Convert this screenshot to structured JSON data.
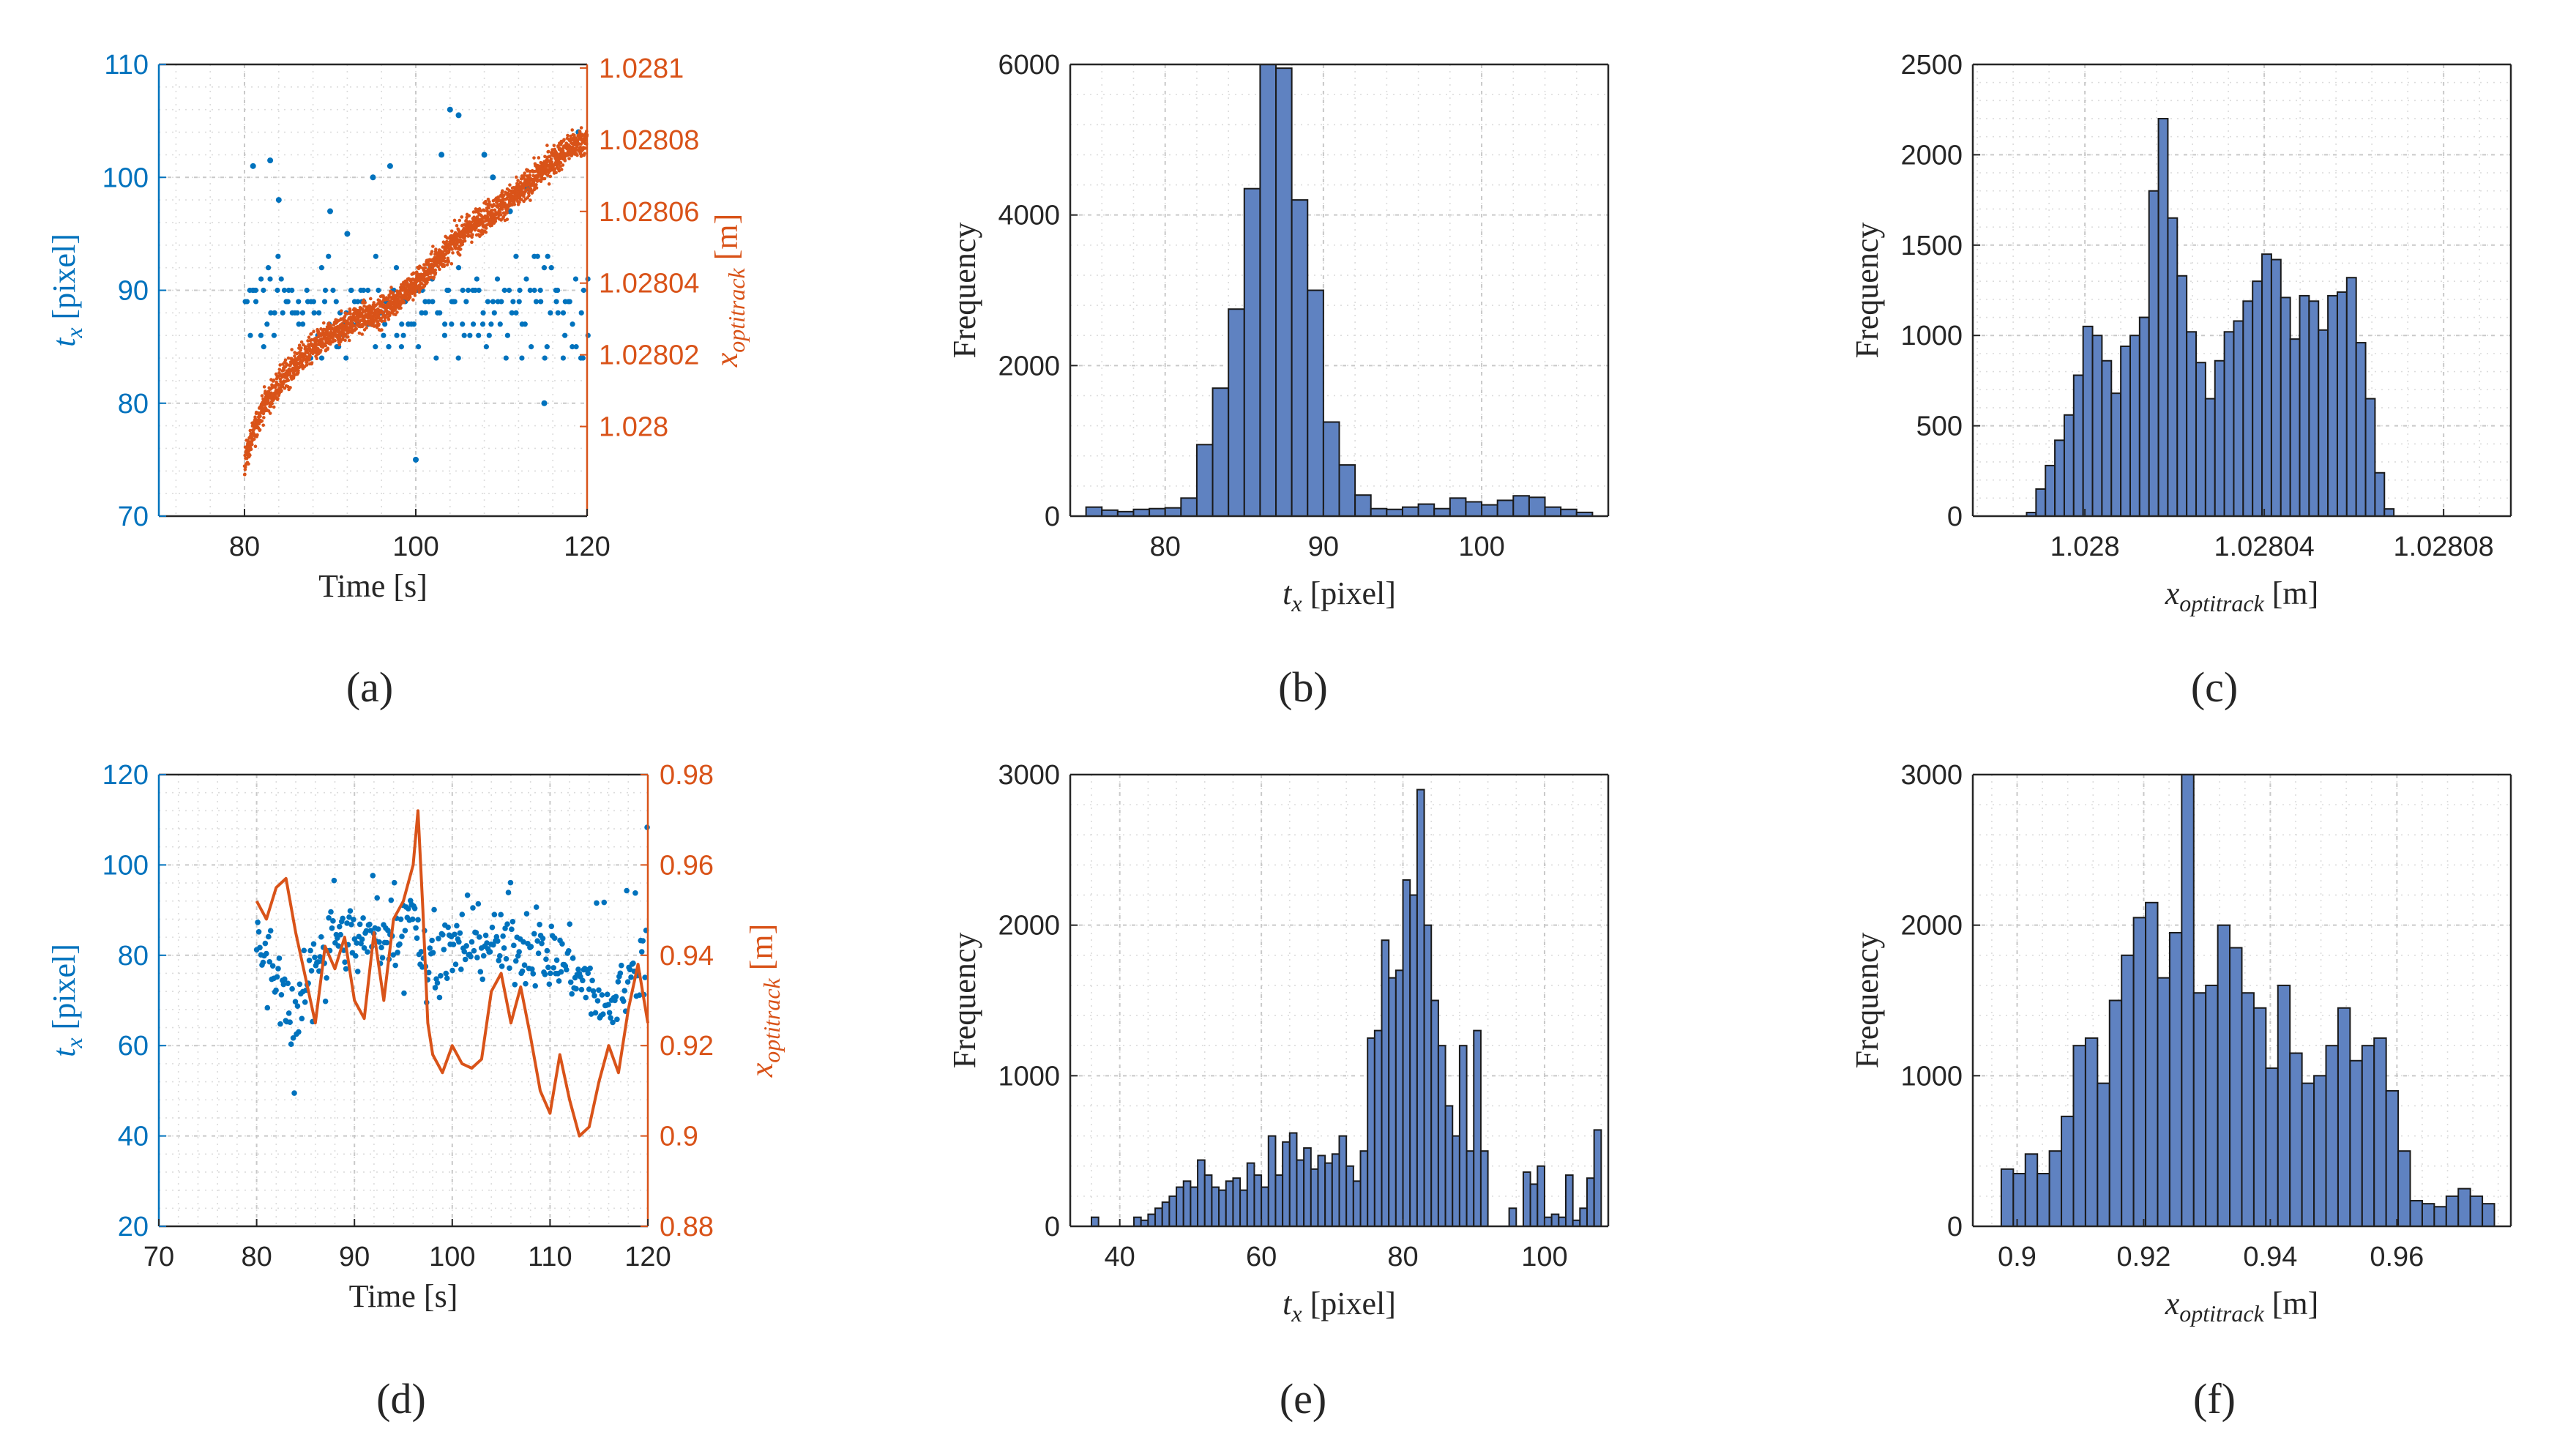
{
  "colors": {
    "blue": "#0072BD",
    "orange": "#D95319",
    "bar_fill": "#5F82C1",
    "bar_edge": "#1a1a1a",
    "axis": "#262626"
  },
  "chart_data": [
    {
      "id": "a",
      "type": "scatter",
      "panel_label": "(a)",
      "xlabel": "Time [s]",
      "ylabel_left": "t_x [pixel]",
      "ylabel_right": "x_optitrack [m]",
      "xlim": [
        70,
        120
      ],
      "xticks": [
        80,
        100,
        120
      ],
      "xtick_labels": [
        "80",
        "100",
        "120"
      ],
      "ylim_left": [
        70,
        110
      ],
      "yticks_left": [
        70,
        80,
        90,
        100,
        110
      ],
      "ytick_labels_left": [
        "70",
        "80",
        "90",
        "100",
        "110"
      ],
      "ylim_right": [
        1.027975,
        1.028101
      ],
      "yticks_right": [
        1.028,
        1.02802,
        1.02804,
        1.02806,
        1.02808,
        1.0281
      ],
      "ytick_labels_right": [
        "1.028",
        "1.02802",
        "1.02804",
        "1.02806",
        "1.02808",
        "1.0281"
      ],
      "series": [
        {
          "name": "t_x",
          "axis": "left",
          "style": "dots",
          "time_range": [
            80,
            120
          ],
          "baseline_levels": [
            84,
            85,
            86,
            87,
            88,
            89,
            90,
            91,
            92,
            93
          ],
          "level_weights": [
            4,
            5,
            7,
            9,
            10,
            10,
            9,
            6,
            4,
            3
          ],
          "outliers": [
            [
              81,
              101
            ],
            [
              83,
              101.5
            ],
            [
              84,
              98
            ],
            [
              90,
              97
            ],
            [
              92,
              95
            ],
            [
              95,
              100
            ],
            [
              97,
              101
            ],
            [
              100,
              75
            ],
            [
              103,
              102
            ],
            [
              104,
              106
            ],
            [
              105,
              105.5
            ],
            [
              108,
              102
            ],
            [
              109,
              100
            ],
            [
              111,
              97
            ],
            [
              113,
              99
            ],
            [
              115,
              80
            ],
            [
              119,
              104
            ]
          ]
        },
        {
          "name": "x_optitrack",
          "axis": "right",
          "style": "noisy-line",
          "points": [
            [
              80,
              1.02799
            ],
            [
              82,
              1.028005
            ],
            [
              85,
              1.028015
            ],
            [
              88,
              1.028022
            ],
            [
              90,
              1.028025
            ],
            [
              93,
              1.02803
            ],
            [
              96,
              1.028032
            ],
            [
              99,
              1.028038
            ],
            [
              101,
              1.028042
            ],
            [
              103,
              1.028048
            ],
            [
              106,
              1.028055
            ],
            [
              109,
              1.02806
            ],
            [
              112,
              1.028065
            ],
            [
              115,
              1.028072
            ],
            [
              118,
              1.028078
            ],
            [
              120,
              1.02808
            ]
          ],
          "noise": 2.8e-06
        }
      ]
    },
    {
      "id": "b",
      "type": "bar",
      "panel_label": "(b)",
      "xlabel": "t_x [pixel]",
      "ylabel": "Frequency",
      "xlim": [
        74,
        108
      ],
      "xticks": [
        80,
        90,
        100
      ],
      "xtick_labels": [
        "80",
        "90",
        "100"
      ],
      "ylim": [
        0,
        6000
      ],
      "yticks": [
        0,
        2000,
        4000,
        6000
      ],
      "ytick_labels": [
        "0",
        "2000",
        "4000",
        "6000"
      ],
      "bin_start": 75,
      "bin_width": 1,
      "values": [
        120,
        80,
        60,
        90,
        100,
        110,
        240,
        950,
        1700,
        2750,
        4350,
        6000,
        5950,
        4200,
        3000,
        1250,
        680,
        280,
        100,
        90,
        120,
        160,
        100,
        240,
        190,
        150,
        210,
        270,
        250,
        120,
        90,
        50
      ]
    },
    {
      "id": "c",
      "type": "bar",
      "panel_label": "(c)",
      "xlabel": "x_optitrack [m]",
      "ylabel": "Frequency",
      "xlim": [
        1.027975,
        1.028095
      ],
      "xticks": [
        1.028,
        1.02804,
        1.02808
      ],
      "xtick_labels": [
        "1.028",
        "1.02804",
        "1.02808"
      ],
      "ylim": [
        0,
        2500
      ],
      "yticks": [
        0,
        500,
        1000,
        1500,
        2000,
        2500
      ],
      "ytick_labels": [
        "0",
        "500",
        "1000",
        "1500",
        "2000",
        "2500"
      ],
      "bin_start": 1.027987,
      "bin_width": 2.1e-06,
      "values": [
        20,
        150,
        280,
        420,
        560,
        780,
        1050,
        1000,
        860,
        680,
        940,
        1000,
        1100,
        1800,
        2200,
        1650,
        1330,
        1020,
        850,
        650,
        860,
        1020,
        1080,
        1190,
        1300,
        1450,
        1420,
        1210,
        980,
        1220,
        1190,
        1030,
        1220,
        1240,
        1320,
        960,
        650,
        240,
        40
      ]
    },
    {
      "id": "d",
      "type": "scatter",
      "panel_label": "(d)",
      "xlabel": "Time [s]",
      "ylabel_left": "t_x [pixel]",
      "ylabel_right": "x_optitrack [m]",
      "xlim": [
        70,
        120
      ],
      "xticks": [
        70,
        80,
        90,
        100,
        110,
        120
      ],
      "xtick_labels": [
        "70",
        "80",
        "90",
        "100",
        "110",
        "120"
      ],
      "ylim_left": [
        20,
        120
      ],
      "yticks_left": [
        20,
        40,
        60,
        80,
        100,
        120
      ],
      "ytick_labels_left": [
        "20",
        "40",
        "60",
        "80",
        "100",
        "120"
      ],
      "ylim_right": [
        0.88,
        0.98
      ],
      "yticks_right": [
        0.88,
        0.9,
        0.92,
        0.94,
        0.96,
        0.98
      ],
      "ytick_labels_right": [
        "0.88",
        "0.9",
        "0.92",
        "0.94",
        "0.96",
        "0.98"
      ],
      "series": [
        {
          "name": "t_x",
          "axis": "left",
          "style": "dots",
          "time_range": [
            80,
            120
          ],
          "mean_points": [
            [
              80,
              83
            ],
            [
              82,
              75
            ],
            [
              84,
              65
            ],
            [
              86,
              80
            ],
            [
              88,
              85
            ],
            [
              90,
              83
            ],
            [
              92,
              84
            ],
            [
              94,
              85
            ],
            [
              96,
              92
            ],
            [
              97,
              78
            ],
            [
              100,
              82
            ],
            [
              104,
              83
            ],
            [
              108,
              82
            ],
            [
              112,
              78
            ],
            [
              116,
              68
            ],
            [
              120,
              82
            ]
          ],
          "spread": 9
        },
        {
          "name": "x_optitrack",
          "axis": "right",
          "style": "line",
          "points": [
            [
              80,
              0.952
            ],
            [
              81,
              0.948
            ],
            [
              82,
              0.955
            ],
            [
              83,
              0.957
            ],
            [
              84,
              0.945
            ],
            [
              85,
              0.935
            ],
            [
              86,
              0.925
            ],
            [
              87,
              0.942
            ],
            [
              88,
              0.937
            ],
            [
              89,
              0.944
            ],
            [
              90,
              0.93
            ],
            [
              91,
              0.926
            ],
            [
              92,
              0.945
            ],
            [
              93,
              0.93
            ],
            [
              94,
              0.948
            ],
            [
              95,
              0.952
            ],
            [
              96,
              0.96
            ],
            [
              96.5,
              0.972
            ],
            [
              97,
              0.95
            ],
            [
              97.5,
              0.925
            ],
            [
              98,
              0.918
            ],
            [
              99,
              0.914
            ],
            [
              100,
              0.92
            ],
            [
              101,
              0.916
            ],
            [
              102,
              0.915
            ],
            [
              103,
              0.917
            ],
            [
              104,
              0.932
            ],
            [
              105,
              0.936
            ],
            [
              106,
              0.925
            ],
            [
              107,
              0.933
            ],
            [
              108,
              0.922
            ],
            [
              109,
              0.91
            ],
            [
              110,
              0.905
            ],
            [
              111,
              0.918
            ],
            [
              112,
              0.908
            ],
            [
              113,
              0.9
            ],
            [
              114,
              0.902
            ],
            [
              115,
              0.912
            ],
            [
              116,
              0.92
            ],
            [
              117,
              0.914
            ],
            [
              118,
              0.928
            ],
            [
              119,
              0.938
            ],
            [
              120,
              0.925
            ]
          ]
        }
      ]
    },
    {
      "id": "e",
      "type": "bar",
      "panel_label": "(e)",
      "xlabel": "t_x [pixel]",
      "ylabel": "Frequency",
      "xlim": [
        33,
        109
      ],
      "xticks": [
        40,
        60,
        80,
        100
      ],
      "xtick_labels": [
        "40",
        "60",
        "80",
        "100"
      ],
      "ylim": [
        0,
        3000
      ],
      "yticks": [
        0,
        1000,
        2000,
        3000
      ],
      "ytick_labels": [
        "0",
        "1000",
        "2000",
        "3000"
      ],
      "bin_start": 34,
      "bin_width": 1,
      "values": [
        0,
        0,
        60,
        0,
        0,
        0,
        0,
        0,
        60,
        40,
        80,
        120,
        160,
        200,
        260,
        300,
        260,
        440,
        340,
        260,
        240,
        300,
        320,
        240,
        420,
        340,
        260,
        600,
        340,
        560,
        620,
        440,
        520,
        380,
        470,
        420,
        480,
        600,
        400,
        300,
        500,
        1250,
        1300,
        1900,
        1650,
        1700,
        2300,
        2200,
        2900,
        2000,
        1500,
        1200,
        800,
        600,
        1200,
        500,
        1300,
        500,
        0,
        0,
        0,
        120,
        0,
        360,
        280,
        400,
        60,
        80,
        60,
        340,
        40,
        120,
        320,
        640
      ]
    },
    {
      "id": "f",
      "type": "bar",
      "panel_label": "(f)",
      "xlabel": "x_optitrack [m]",
      "ylabel": "Frequency",
      "xlim": [
        0.893,
        0.978
      ],
      "xticks": [
        0.9,
        0.92,
        0.94,
        0.96
      ],
      "xtick_labels": [
        "0.9",
        "0.92",
        "0.94",
        "0.96"
      ],
      "ylim": [
        0,
        3000
      ],
      "yticks": [
        0,
        1000,
        2000,
        3000
      ],
      "ytick_labels": [
        "0",
        "1000",
        "2000",
        "3000"
      ],
      "bin_start": 0.8975,
      "bin_width": 0.0019,
      "values": [
        380,
        350,
        480,
        350,
        500,
        730,
        1200,
        1250,
        950,
        1500,
        1800,
        2050,
        2150,
        1650,
        1950,
        3000,
        1550,
        1600,
        2000,
        1850,
        1550,
        1450,
        1050,
        1600,
        1150,
        950,
        1000,
        1200,
        1450,
        1100,
        1200,
        1250,
        900,
        500,
        170,
        150,
        130,
        200,
        250,
        200,
        150
      ]
    }
  ]
}
